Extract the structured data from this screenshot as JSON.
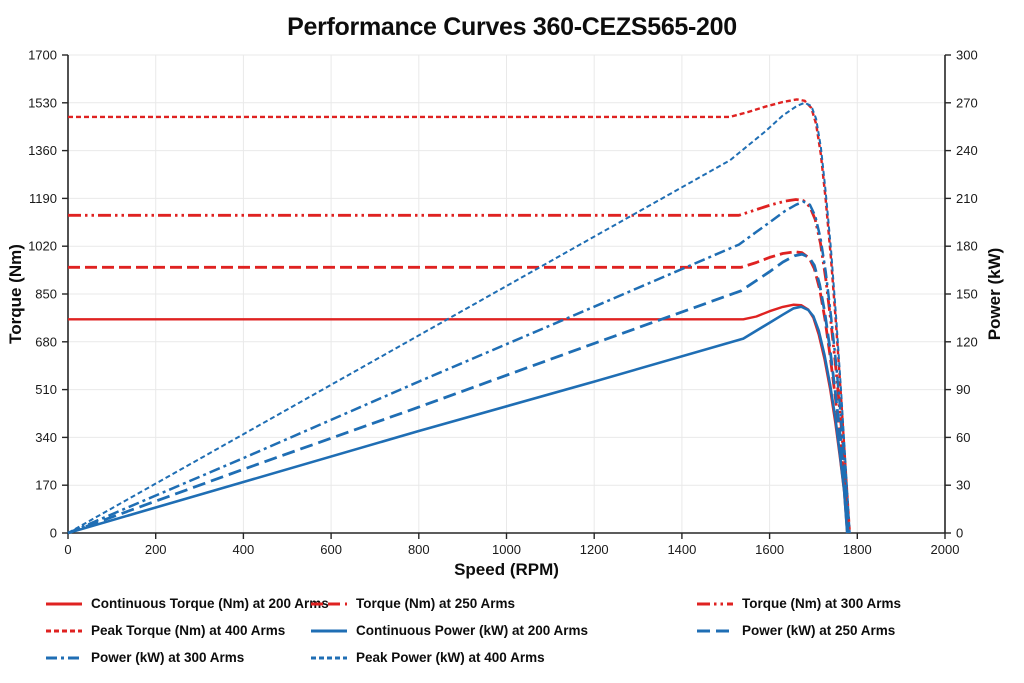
{
  "chart_data": {
    "type": "line",
    "title": "Performance Curves 360-CEZS565-200",
    "xlabel": "Speed (RPM)",
    "ylabel_left": "Torque (Nm)",
    "ylabel_right": "Power (kW)",
    "grid": true,
    "legend_position": "bottom",
    "x_axis": {
      "min": 0,
      "max": 2000,
      "ticks": [
        0,
        200,
        400,
        600,
        800,
        1000,
        1200,
        1400,
        1600,
        1800,
        2000
      ]
    },
    "y_left": {
      "min": 0,
      "max": 1700,
      "ticks": [
        0,
        170,
        340,
        510,
        680,
        850,
        1020,
        1190,
        1360,
        1530,
        1700
      ]
    },
    "y_right": {
      "min": 0,
      "max": 300,
      "ticks": [
        0,
        30,
        60,
        90,
        120,
        150,
        180,
        210,
        240,
        270,
        300
      ]
    },
    "colors": {
      "red": "#df2221",
      "blue": "#1f6eb4"
    },
    "series": [
      {
        "name": "Continuous Torque (Nm) at 200 Arms",
        "axis": "left",
        "color": "red",
        "dash": "",
        "width": 2.4,
        "points": [
          [
            0,
            760
          ],
          [
            1000,
            760
          ],
          [
            1540,
            760
          ],
          [
            1570,
            770
          ],
          [
            1600,
            789
          ],
          [
            1630,
            804
          ],
          [
            1655,
            812
          ],
          [
            1672,
            810
          ],
          [
            1688,
            795
          ],
          [
            1700,
            765
          ],
          [
            1712,
            706
          ],
          [
            1725,
            620
          ],
          [
            1738,
            512
          ],
          [
            1750,
            390
          ],
          [
            1760,
            272
          ],
          [
            1770,
            148
          ],
          [
            1777,
            0
          ]
        ]
      },
      {
        "name": "Torque (Nm) at 250 Arms",
        "axis": "left",
        "color": "red",
        "dash": "12 5",
        "width": 2.8,
        "points": [
          [
            0,
            945
          ],
          [
            1000,
            945
          ],
          [
            1535,
            945
          ],
          [
            1570,
            962
          ],
          [
            1600,
            980
          ],
          [
            1630,
            994
          ],
          [
            1657,
            1000
          ],
          [
            1674,
            997
          ],
          [
            1690,
            978
          ],
          [
            1702,
            940
          ],
          [
            1714,
            868
          ],
          [
            1726,
            762
          ],
          [
            1738,
            630
          ],
          [
            1750,
            480
          ],
          [
            1762,
            320
          ],
          [
            1772,
            160
          ],
          [
            1779,
            0
          ]
        ]
      },
      {
        "name": "Torque (Nm) at 300 Arms",
        "axis": "left",
        "color": "red",
        "dash": "13 4 2.5 4 2.5 4",
        "width": 2.8,
        "points": [
          [
            0,
            1130
          ],
          [
            1000,
            1130
          ],
          [
            1530,
            1130
          ],
          [
            1570,
            1150
          ],
          [
            1605,
            1168
          ],
          [
            1635,
            1180
          ],
          [
            1660,
            1186
          ],
          [
            1677,
            1182
          ],
          [
            1692,
            1160
          ],
          [
            1704,
            1115
          ],
          [
            1716,
            1030
          ],
          [
            1728,
            905
          ],
          [
            1740,
            748
          ],
          [
            1752,
            570
          ],
          [
            1763,
            385
          ],
          [
            1773,
            195
          ],
          [
            1781,
            0
          ]
        ]
      },
      {
        "name": "Peak Torque (Nm) at 400 Arms",
        "axis": "left",
        "color": "red",
        "dash": "5 3",
        "width": 2.4,
        "points": [
          [
            0,
            1480
          ],
          [
            1000,
            1480
          ],
          [
            1510,
            1480
          ],
          [
            1550,
            1497
          ],
          [
            1590,
            1516
          ],
          [
            1630,
            1533
          ],
          [
            1662,
            1542
          ],
          [
            1680,
            1537
          ],
          [
            1695,
            1512
          ],
          [
            1706,
            1455
          ],
          [
            1717,
            1345
          ],
          [
            1728,
            1185
          ],
          [
            1740,
            975
          ],
          [
            1752,
            730
          ],
          [
            1763,
            480
          ],
          [
            1773,
            235
          ],
          [
            1783,
            0
          ]
        ]
      },
      {
        "name": "Continuous Power (kW) at 200 Arms",
        "axis": "right",
        "color": "blue",
        "dash": "",
        "width": 2.6,
        "points": [
          [
            0,
            0
          ],
          [
            400,
            32
          ],
          [
            800,
            64
          ],
          [
            1200,
            95
          ],
          [
            1540,
            122
          ],
          [
            1600,
            132
          ],
          [
            1630,
            137
          ],
          [
            1655,
            141
          ],
          [
            1672,
            142
          ],
          [
            1688,
            140
          ],
          [
            1700,
            136
          ],
          [
            1712,
            127
          ],
          [
            1725,
            112
          ],
          [
            1738,
            93
          ],
          [
            1750,
            72
          ],
          [
            1760,
            50
          ],
          [
            1770,
            27
          ],
          [
            1777,
            0
          ]
        ]
      },
      {
        "name": "Power (kW) at 250 Arms",
        "axis": "right",
        "color": "blue",
        "dash": "13 6",
        "width": 2.8,
        "points": [
          [
            0,
            0
          ],
          [
            400,
            40
          ],
          [
            800,
            79
          ],
          [
            1200,
            119
          ],
          [
            1535,
            152
          ],
          [
            1600,
            164
          ],
          [
            1630,
            170
          ],
          [
            1657,
            174
          ],
          [
            1674,
            175
          ],
          [
            1690,
            173
          ],
          [
            1702,
            168
          ],
          [
            1714,
            156
          ],
          [
            1726,
            138
          ],
          [
            1738,
            115
          ],
          [
            1750,
            88
          ],
          [
            1762,
            59
          ],
          [
            1772,
            30
          ],
          [
            1779,
            0
          ]
        ]
      },
      {
        "name": "Power (kW) at 300 Arms",
        "axis": "right",
        "color": "blue",
        "dash": "11 4 3 4",
        "width": 2.5,
        "points": [
          [
            0,
            0
          ],
          [
            400,
            47
          ],
          [
            800,
            95
          ],
          [
            1200,
            142
          ],
          [
            1530,
            181
          ],
          [
            1570,
            189
          ],
          [
            1605,
            196
          ],
          [
            1635,
            202
          ],
          [
            1660,
            206
          ],
          [
            1677,
            208
          ],
          [
            1692,
            206
          ],
          [
            1704,
            199
          ],
          [
            1716,
            185
          ],
          [
            1728,
            164
          ],
          [
            1740,
            136
          ],
          [
            1752,
            105
          ],
          [
            1763,
            71
          ],
          [
            1773,
            36
          ],
          [
            1781,
            0
          ]
        ]
      },
      {
        "name": "Peak Power (kW) at 400 Arms",
        "axis": "right",
        "color": "blue",
        "dash": "5 3",
        "width": 2.0,
        "points": [
          [
            0,
            0
          ],
          [
            400,
            62
          ],
          [
            800,
            124
          ],
          [
            1200,
            186
          ],
          [
            1510,
            234
          ],
          [
            1550,
            243
          ],
          [
            1590,
            252
          ],
          [
            1630,
            262
          ],
          [
            1662,
            268
          ],
          [
            1680,
            270
          ],
          [
            1695,
            268
          ],
          [
            1706,
            260
          ],
          [
            1717,
            242
          ],
          [
            1728,
            214
          ],
          [
            1740,
            178
          ],
          [
            1752,
            134
          ],
          [
            1763,
            89
          ],
          [
            1773,
            44
          ],
          [
            1783,
            0
          ]
        ]
      }
    ]
  }
}
